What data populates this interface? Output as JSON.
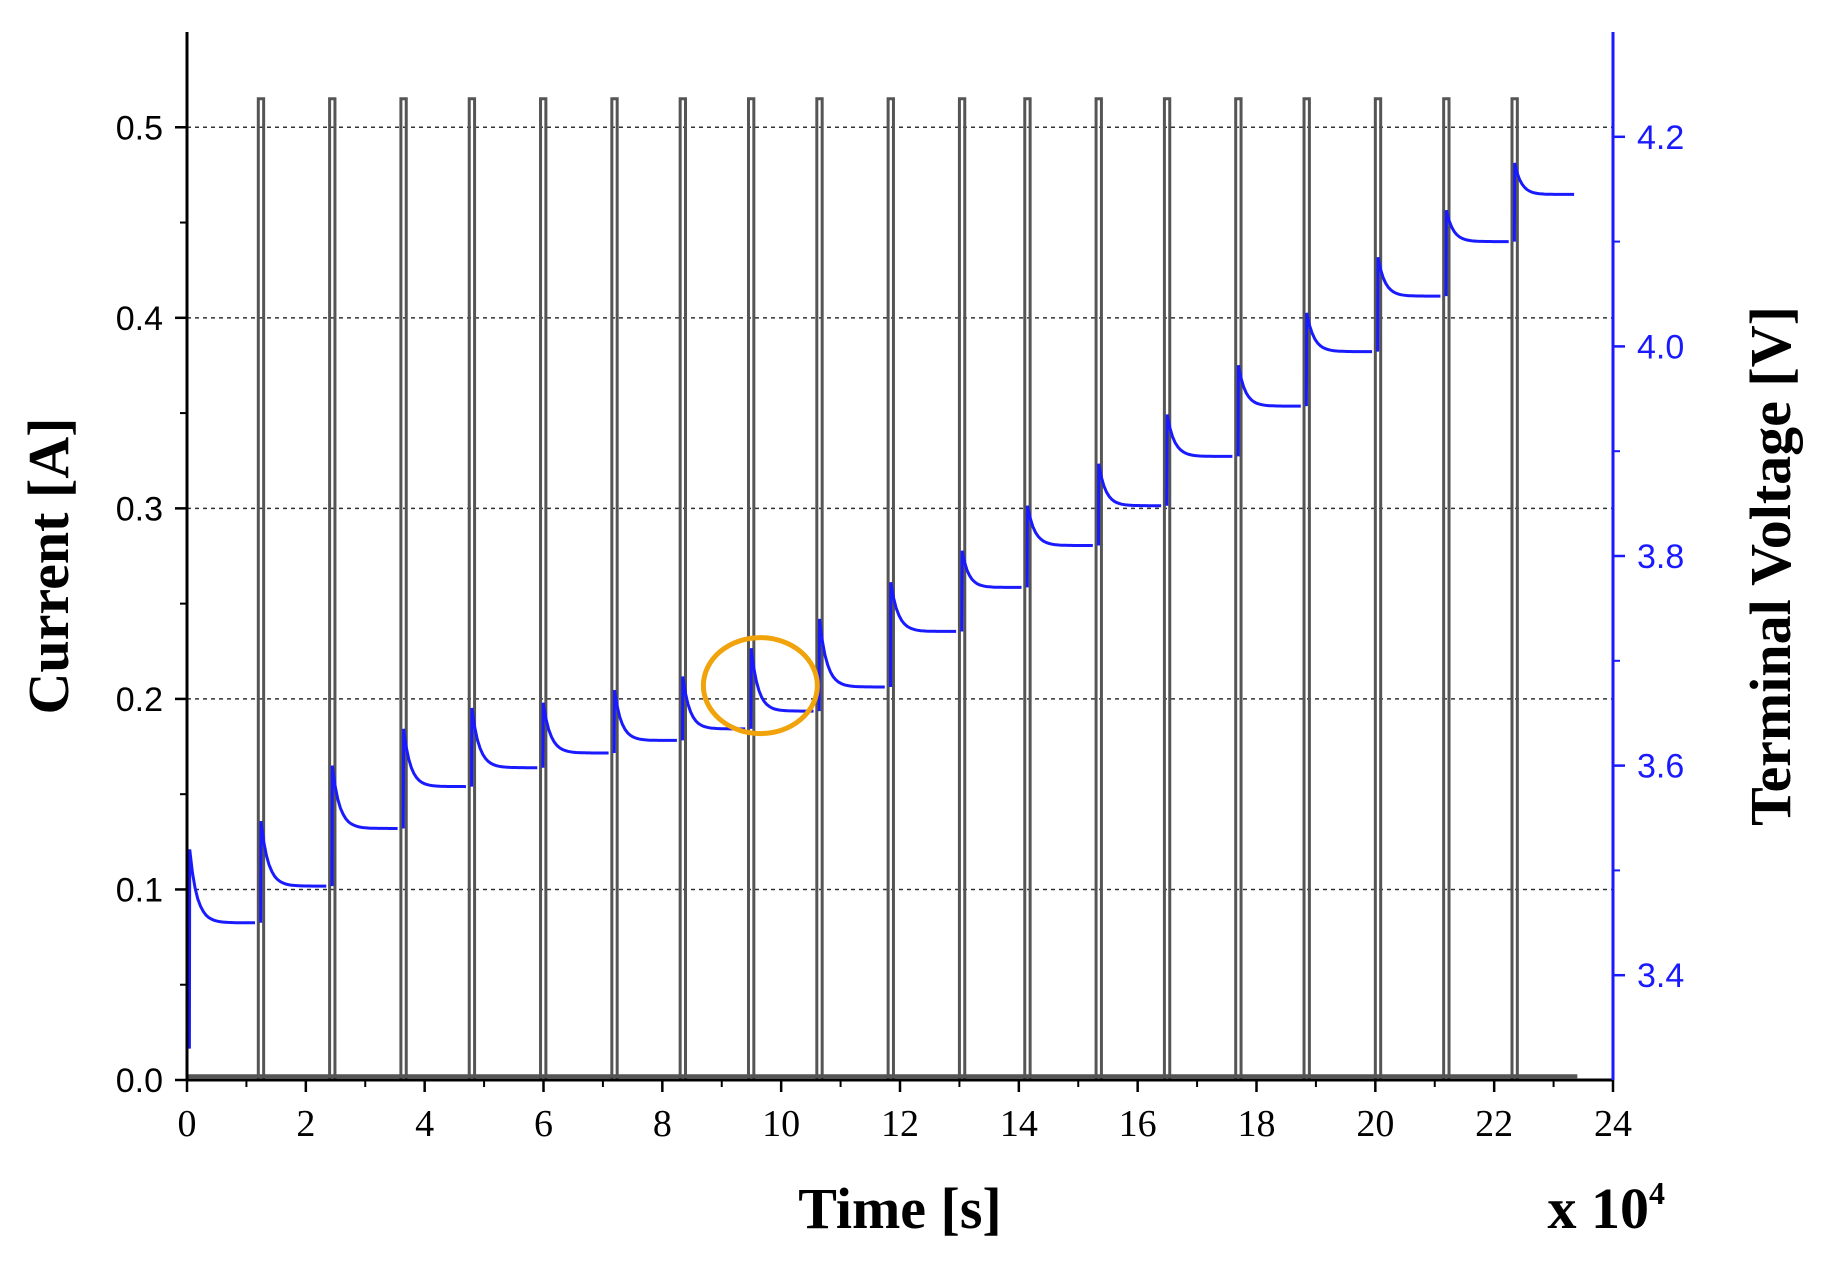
{
  "chart_data": {
    "type": "line",
    "xlabel": "Time [s]",
    "x_multiplier": "x 10",
    "x_multiplier_exp": "4",
    "ylabel_left": "Current [A]",
    "ylabel_right": "Terminal Voltage [V]",
    "xlim": [
      0,
      24
    ],
    "ylim_left": [
      0,
      0.55
    ],
    "ylim_right": [
      3.3,
      4.3
    ],
    "xticks": [
      "0",
      "2",
      "4",
      "6",
      "8",
      "10",
      "12",
      "14",
      "16",
      "18",
      "20",
      "22",
      "24"
    ],
    "yticks_left": [
      "0.0",
      "0.1",
      "0.2",
      "0.3",
      "0.4",
      "0.5"
    ],
    "yticks_right": [
      "3.4",
      "3.6",
      "3.8",
      "4.0",
      "4.2"
    ],
    "grid_left_values": [
      0.1,
      0.2,
      0.3,
      0.4,
      0.5
    ],
    "colors": {
      "current": "#555555",
      "voltage": "#1a1aff",
      "axis_right": "#1a1aff",
      "highlight": "#f0a30a"
    },
    "series": [
      {
        "name": "Current",
        "axis": "left",
        "pulse_amplitude": 0.515,
        "pulse_times": [
          1.2,
          2.4,
          3.6,
          4.75,
          5.95,
          7.15,
          8.3,
          9.45,
          10.6,
          11.8,
          13.0,
          14.1,
          15.3,
          16.45,
          17.65,
          18.8,
          20.0,
          21.15,
          22.3
        ],
        "pulse_width": 0.09
      },
      {
        "name": "Terminal Voltage",
        "axis": "right",
        "step_start": [
          0.0,
          1.2,
          2.4,
          3.6,
          4.75,
          5.95,
          7.15,
          8.3,
          9.45,
          10.6,
          11.8,
          13.0,
          14.1,
          15.3,
          16.45,
          17.65,
          18.8,
          20.0,
          21.15,
          22.3
        ],
        "step_end": [
          1.2,
          2.4,
          3.6,
          4.75,
          5.95,
          7.15,
          8.3,
          9.45,
          10.6,
          11.8,
          13.0,
          14.1,
          15.3,
          16.45,
          17.65,
          18.8,
          20.0,
          21.15,
          22.3,
          23.4
        ],
        "relaxed_voltage": [
          3.45,
          3.485,
          3.54,
          3.58,
          3.598,
          3.612,
          3.624,
          3.635,
          3.652,
          3.675,
          3.728,
          3.77,
          3.81,
          3.848,
          3.895,
          3.943,
          3.995,
          4.048,
          4.1,
          4.145
        ],
        "peak_voltage": [
          3.52,
          3.547,
          3.6,
          3.635,
          3.655,
          3.66,
          3.672,
          3.685,
          3.712,
          3.74,
          3.775,
          3.805,
          3.848,
          3.888,
          3.935,
          3.982,
          4.032,
          4.085,
          4.13,
          4.175
        ]
      }
    ],
    "annotation": {
      "type": "circle",
      "x": 9.65,
      "y_left": 0.207,
      "note": "highlighted relaxation step"
    }
  }
}
